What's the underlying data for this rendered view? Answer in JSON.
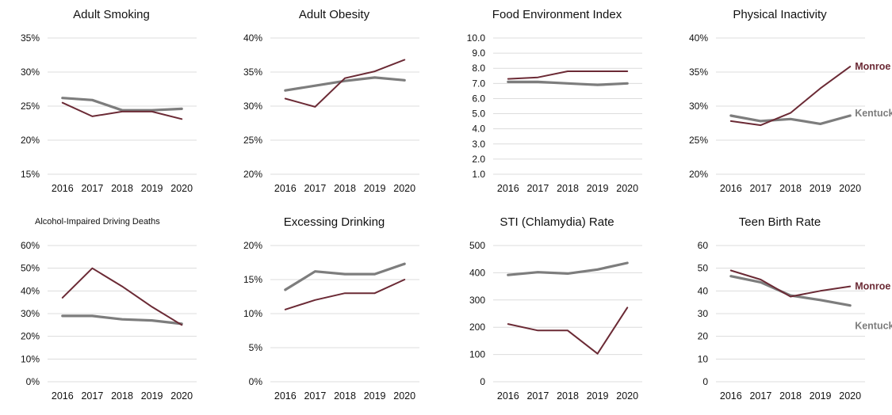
{
  "colors": {
    "county": "#6b2a35",
    "state": "#7d7d7d",
    "grid": "#dcdcdc",
    "tick": "#111111"
  },
  "series_labels": {
    "county": "Monroe County",
    "state": "Kentucky"
  },
  "chart_data": [
    {
      "type": "line",
      "title": "Adult Smoking",
      "x": [
        "2016",
        "2017",
        "2018",
        "2019",
        "2020"
      ],
      "yticks": [
        "35%",
        "30%",
        "25%",
        "20%",
        "15%"
      ],
      "ylim": [
        15,
        35
      ],
      "series": [
        {
          "values": [
            26.2,
            25.9,
            24.4,
            24.4,
            24.6
          ],
          "role": "state"
        },
        {
          "values": [
            25.5,
            23.5,
            24.2,
            24.2,
            23.1
          ],
          "role": "county"
        }
      ]
    },
    {
      "type": "line",
      "title": "Adult Obesity",
      "x": [
        "2016",
        "2017",
        "2018",
        "2019",
        "2020"
      ],
      "yticks": [
        "40%",
        "35%",
        "30%",
        "25%",
        "20%"
      ],
      "ylim": [
        20,
        40
      ],
      "series": [
        {
          "values": [
            32.3,
            33.0,
            33.7,
            34.2,
            33.8
          ],
          "role": "state"
        },
        {
          "values": [
            31.1,
            29.9,
            34.1,
            35.1,
            36.8
          ],
          "role": "county"
        }
      ]
    },
    {
      "type": "line",
      "title": "Food Environment Index",
      "x": [
        "2016",
        "2017",
        "2018",
        "2019",
        "2020"
      ],
      "yticks": [
        "10.0",
        "9.0",
        "8.0",
        "7.0",
        "6.0",
        "5.0",
        "4.0",
        "3.0",
        "2.0",
        "1.0"
      ],
      "ylim": [
        1,
        10
      ],
      "series": [
        {
          "values": [
            7.1,
            7.1,
            7.0,
            6.9,
            7.0
          ],
          "role": "state"
        },
        {
          "values": [
            7.3,
            7.4,
            7.8,
            7.8,
            7.8
          ],
          "role": "county"
        }
      ]
    },
    {
      "type": "line",
      "title": "Physical Inactivity",
      "x": [
        "2016",
        "2017",
        "2018",
        "2019",
        "2020"
      ],
      "yticks": [
        "40%",
        "35%",
        "30%",
        "25%",
        "20%"
      ],
      "ylim": [
        20,
        40
      ],
      "series": [
        {
          "values": [
            28.6,
            27.8,
            28.1,
            27.4,
            28.6
          ],
          "role": "state",
          "label": "Kentucky"
        },
        {
          "values": [
            27.8,
            27.2,
            29.0,
            32.6,
            35.8
          ],
          "role": "county",
          "label": "Monroe County"
        }
      ]
    },
    {
      "type": "line",
      "title": "Alcohol-Impaired Driving Deaths",
      "x": [
        "2016",
        "2017",
        "2018",
        "2019",
        "2020"
      ],
      "yticks": [
        "60%",
        "50%",
        "40%",
        "30%",
        "20%",
        "10%",
        "0%"
      ],
      "ylim": [
        0,
        60
      ],
      "series": [
        {
          "values": [
            29,
            29,
            27.5,
            27,
            25.5
          ],
          "role": "state"
        },
        {
          "values": [
            37,
            50,
            42,
            33,
            25
          ],
          "role": "county"
        }
      ]
    },
    {
      "type": "line",
      "title": "Excessing Drinking",
      "x": [
        "2016",
        "2017",
        "2018",
        "2019",
        "2020"
      ],
      "yticks": [
        "20%",
        "15%",
        "10%",
        "5%",
        "0%"
      ],
      "ylim": [
        0,
        20
      ],
      "series": [
        {
          "values": [
            13.5,
            16.2,
            15.8,
            15.8,
            17.3
          ],
          "role": "state"
        },
        {
          "values": [
            10.6,
            12.0,
            13.0,
            13.0,
            15.0
          ],
          "role": "county"
        }
      ]
    },
    {
      "type": "line",
      "title": "STI (Chlamydia) Rate",
      "x": [
        "2016",
        "2017",
        "2018",
        "2019",
        "2020"
      ],
      "yticks": [
        "500",
        "400",
        "300",
        "200",
        "100",
        "0"
      ],
      "ylim": [
        0,
        500
      ],
      "series": [
        {
          "values": [
            392,
            402,
            397,
            412,
            436
          ],
          "role": "state"
        },
        {
          "values": [
            212,
            188,
            188,
            103,
            272
          ],
          "role": "county"
        }
      ]
    },
    {
      "type": "line",
      "title": "Teen Birth Rate",
      "x": [
        "2016",
        "2017",
        "2018",
        "2019",
        "2020"
      ],
      "yticks": [
        "60",
        "50",
        "40",
        "30",
        "20",
        "10",
        "0"
      ],
      "ylim": [
        0,
        60
      ],
      "series": [
        {
          "values": [
            46.5,
            43.8,
            38.0,
            36.0,
            33.6
          ],
          "role": "state",
          "label": "Kentucky"
        },
        {
          "values": [
            49.0,
            45.0,
            37.5,
            40.0,
            42.0
          ],
          "role": "county",
          "label": "Monroe County"
        }
      ]
    }
  ]
}
